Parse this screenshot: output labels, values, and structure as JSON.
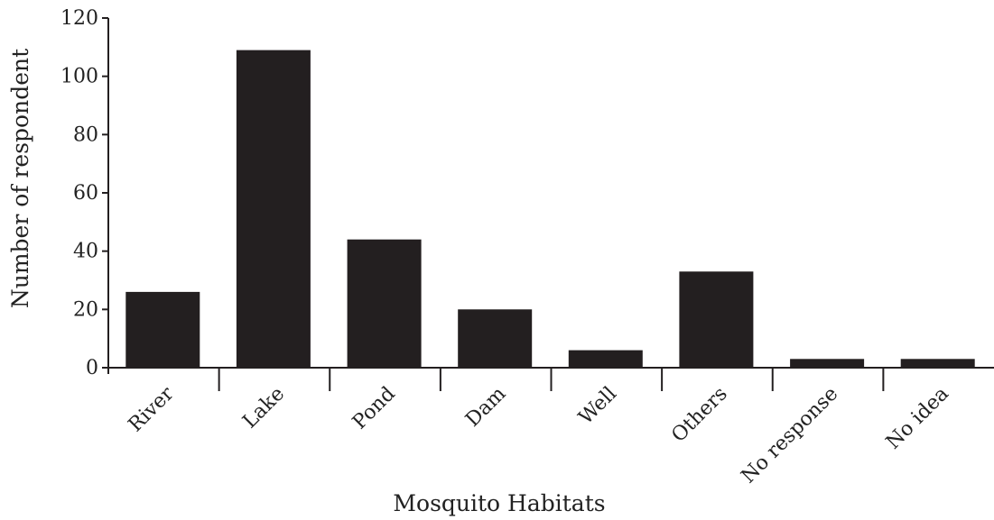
{
  "chart_data": {
    "type": "bar",
    "title": "",
    "xlabel": "Mosquito Habitats",
    "ylabel": "Number of respondent",
    "categories": [
      "River",
      "Lake",
      "Pond",
      "Dam",
      "Well",
      "Others",
      "No response",
      "No idea"
    ],
    "values": [
      26,
      109,
      44,
      20,
      6,
      33,
      3,
      3
    ],
    "ylim": [
      0,
      120
    ],
    "yticks": [
      0,
      20,
      40,
      60,
      80,
      100,
      120
    ],
    "grid": false,
    "legend": "none",
    "bar_color": "#231f20",
    "axis_color": "#231f20"
  }
}
